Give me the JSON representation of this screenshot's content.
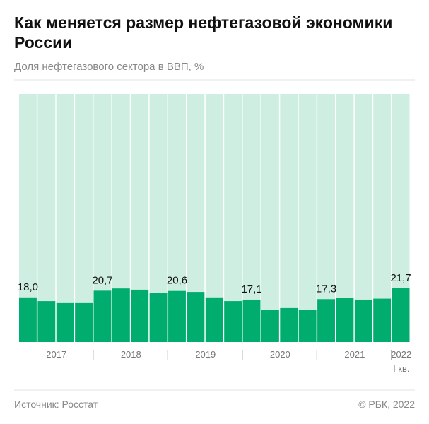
{
  "header": {
    "title": "Как меняется размер нефтегазовой экономики России",
    "subtitle": "Доля нефтегазового сектора в ВВП, %"
  },
  "chart_data": {
    "type": "bar",
    "categories": [
      "2017",
      null,
      null,
      null,
      "2018",
      null,
      null,
      null,
      "2019",
      null,
      null,
      null,
      "2020",
      null,
      null,
      null,
      "2021",
      null,
      null,
      null,
      "2022\nI кв."
    ],
    "values": [
      18.0,
      16.5,
      15.7,
      15.7,
      20.7,
      21.6,
      21.1,
      19.9,
      20.6,
      20.2,
      18.0,
      16.5,
      17.1,
      13.1,
      13.7,
      13.1,
      17.3,
      17.8,
      17.1,
      17.5,
      21.7
    ],
    "value_labels": [
      "18,0",
      null,
      null,
      null,
      "20,7",
      null,
      null,
      null,
      "20,6",
      null,
      null,
      null,
      "17,1",
      null,
      null,
      null,
      "17,3",
      null,
      null,
      null,
      "21,7"
    ],
    "color": "#00ad6f",
    "background_color": "#cdeee0",
    "ylim": [
      0,
      100
    ]
  },
  "footer": {
    "source": "Источник: Росстат",
    "copyright": "© РБК, 2022"
  }
}
